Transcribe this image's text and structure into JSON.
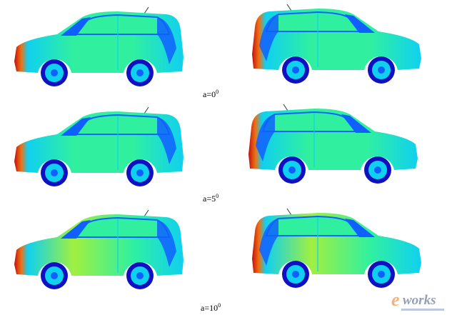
{
  "figure": {
    "rows": [
      {
        "angle_label": "a=0",
        "angle_sup": "0"
      },
      {
        "angle_label": "a=5",
        "angle_sup": "0"
      },
      {
        "angle_label": "a=10",
        "angle_sup": "0"
      }
    ],
    "colormap": [
      "#1010c0",
      "#1060ff",
      "#10d0f0",
      "#30f0a0",
      "#a0f040",
      "#f0e020",
      "#f07010",
      "#c01010"
    ],
    "watermark": "e-works"
  }
}
